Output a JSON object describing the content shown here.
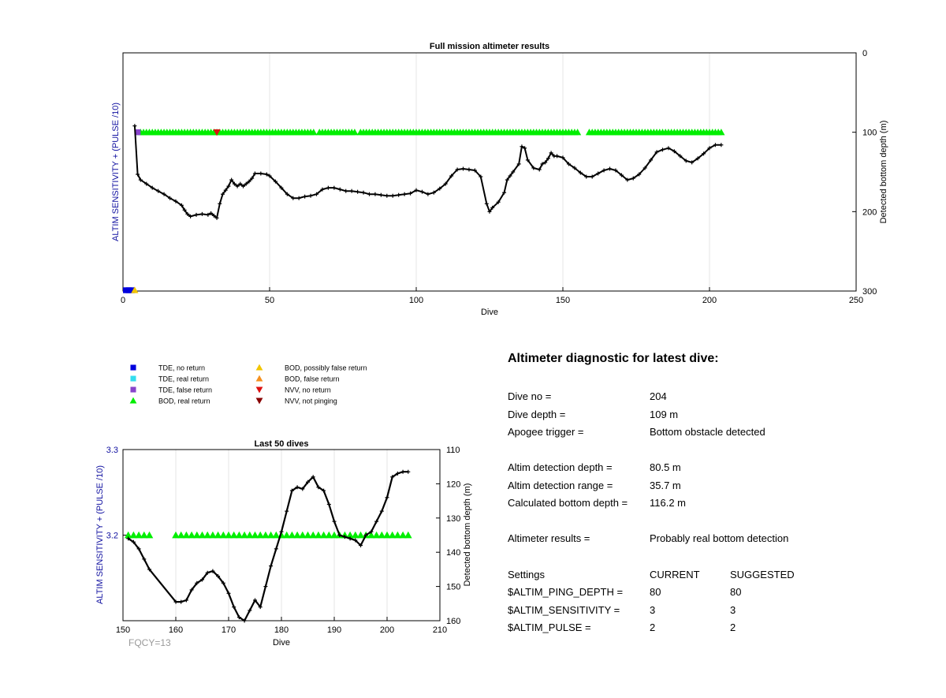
{
  "colors": {
    "grid": "#e6e6e6",
    "axis_label_left": "#1010a0",
    "green": "#00ee00",
    "line": "#000000"
  },
  "legend": [
    {
      "label": "TDE, no return",
      "marker": "square",
      "color": "#0000dd"
    },
    {
      "label": "TDE, real return",
      "marker": "square",
      "color": "#33ddee"
    },
    {
      "label": "TDE, false return",
      "marker": "square",
      "color": "#8844cc"
    },
    {
      "label": "BOD, real return",
      "marker": "triangle-up",
      "color": "#00ee00"
    },
    {
      "label": "BOD, possibly false return",
      "marker": "triangle-up",
      "color": "#f2c500"
    },
    {
      "label": "BOD, false return",
      "marker": "triangle-up",
      "color": "#f5901e"
    },
    {
      "label": "NVV, no return",
      "marker": "triangle-down",
      "color": "#dd1111"
    },
    {
      "label": "NVV, not pinging",
      "marker": "triangle-down",
      "color": "#880000"
    }
  ],
  "chart_data": [
    {
      "type": "line",
      "title": "Full mission altimeter results",
      "xlabel": "Dive",
      "ylabel_left": "ALTIM SENSITIVITY + (PULSE /10)",
      "ylabel_right": "Detected bottom depth (m)",
      "xlim": [
        0,
        250
      ],
      "ylim_right": [
        0,
        300
      ],
      "y_reversed": true,
      "xticks": [
        0,
        50,
        100,
        150,
        200,
        250
      ],
      "yticks_right": [
        0,
        100,
        200,
        300
      ],
      "grid": "x-only",
      "series": [
        {
          "kind": "line",
          "points": [
            [
              4,
              92
            ],
            [
              5,
              153
            ],
            [
              6,
              160
            ],
            [
              8,
              165
            ],
            [
              10,
              170
            ],
            [
              12,
              174
            ],
            [
              14,
              178
            ],
            [
              16,
              183
            ],
            [
              18,
              187
            ],
            [
              20,
              192
            ],
            [
              21,
              198
            ],
            [
              22,
              203
            ],
            [
              23,
              206
            ],
            [
              25,
              204
            ],
            [
              27,
              203
            ],
            [
              29,
              204
            ],
            [
              30,
              202
            ],
            [
              31,
              205
            ],
            [
              32,
              208
            ],
            [
              33,
              190
            ],
            [
              34,
              178
            ],
            [
              35,
              173
            ],
            [
              36,
              168
            ],
            [
              37,
              160
            ],
            [
              38,
              165
            ],
            [
              39,
              168
            ],
            [
              40,
              165
            ],
            [
              41,
              168
            ],
            [
              42,
              165
            ],
            [
              43,
              162
            ],
            [
              44,
              158
            ],
            [
              45,
              152
            ],
            [
              47,
              152
            ],
            [
              49,
              153
            ],
            [
              50,
              155
            ],
            [
              52,
              162
            ],
            [
              54,
              170
            ],
            [
              56,
              178
            ],
            [
              58,
              183
            ],
            [
              60,
              183
            ],
            [
              62,
              181
            ],
            [
              64,
              180
            ],
            [
              66,
              178
            ],
            [
              68,
              172
            ],
            [
              70,
              170
            ],
            [
              72,
              170
            ],
            [
              74,
              172
            ],
            [
              76,
              174
            ],
            [
              78,
              174
            ],
            [
              80,
              175
            ],
            [
              82,
              176
            ],
            [
              84,
              178
            ],
            [
              86,
              178
            ],
            [
              88,
              179
            ],
            [
              90,
              180
            ],
            [
              92,
              180
            ],
            [
              94,
              179
            ],
            [
              96,
              178
            ],
            [
              98,
              177
            ],
            [
              100,
              173
            ],
            [
              102,
              175
            ],
            [
              104,
              178
            ],
            [
              106,
              176
            ],
            [
              108,
              171
            ],
            [
              110,
              165
            ],
            [
              112,
              155
            ],
            [
              114,
              147
            ],
            [
              116,
              146
            ],
            [
              118,
              147
            ],
            [
              120,
              148
            ],
            [
              122,
              156
            ],
            [
              124,
              190
            ],
            [
              125,
              200
            ],
            [
              126,
              195
            ],
            [
              128,
              188
            ],
            [
              130,
              176
            ],
            [
              131,
              160
            ],
            [
              132,
              155
            ],
            [
              133,
              150
            ],
            [
              135,
              140
            ],
            [
              136,
              118
            ],
            [
              137,
              120
            ],
            [
              138,
              135
            ],
            [
              140,
              145
            ],
            [
              142,
              147
            ],
            [
              143,
              140
            ],
            [
              144,
              138
            ],
            [
              145,
              133
            ],
            [
              146,
              126
            ],
            [
              147,
              130
            ],
            [
              148,
              130
            ],
            [
              150,
              132
            ],
            [
              152,
              140
            ],
            [
              154,
              145
            ],
            [
              156,
              151
            ],
            [
              158,
              156
            ],
            [
              160,
              156
            ],
            [
              162,
              152
            ],
            [
              164,
              148
            ],
            [
              166,
              146
            ],
            [
              168,
              148
            ],
            [
              170,
              154
            ],
            [
              172,
              160
            ],
            [
              174,
              158
            ],
            [
              176,
              153
            ],
            [
              178,
              145
            ],
            [
              180,
              135
            ],
            [
              182,
              125
            ],
            [
              184,
              122
            ],
            [
              186,
              120
            ],
            [
              188,
              124
            ],
            [
              190,
              130
            ],
            [
              192,
              136
            ],
            [
              194,
              138
            ],
            [
              196,
              133
            ],
            [
              198,
              127
            ],
            [
              200,
              120
            ],
            [
              202,
              116
            ],
            [
              204,
              116
            ]
          ]
        },
        {
          "kind": "markers",
          "name": "BOD, real return",
          "marker": "triangle-up",
          "color": "#00ee00",
          "y": 100,
          "ranges": [
            [
              6,
              65
            ],
            [
              67,
              79
            ],
            [
              81,
              155
            ],
            [
              159,
              204
            ]
          ]
        },
        {
          "kind": "markers",
          "name": "NVV, no return",
          "marker": "triangle-down",
          "color": "#dd1111",
          "points": [
            [
              32,
              100
            ]
          ]
        },
        {
          "kind": "markers",
          "name": "TDE, false return",
          "marker": "square",
          "color": "#8844cc",
          "points": [
            [
              5,
              100
            ]
          ]
        },
        {
          "kind": "markers",
          "name": "TDE, no return",
          "marker": "square",
          "color": "#0000dd",
          "points": [
            [
              1,
              300
            ],
            [
              2,
              300
            ],
            [
              3,
              300
            ]
          ]
        },
        {
          "kind": "markers",
          "name": "BOD, possibly false return",
          "marker": "triangle-up",
          "color": "#f2c500",
          "points": [
            [
              4,
              300
            ]
          ]
        }
      ]
    },
    {
      "type": "line",
      "title": "Last 50 dives",
      "xlabel": "Dive",
      "ylabel_left": "ALTIM SENSITIVITY + (PULSE /10)",
      "ylabel_right": "Detected bottom depth (m)",
      "xlim": [
        150,
        210
      ],
      "ylim_left": [
        3.1,
        3.3
      ],
      "ylim_right": [
        110,
        160
      ],
      "y_reversed": true,
      "xticks": [
        150,
        160,
        170,
        180,
        190,
        200,
        210
      ],
      "yticks_left": [
        3.2,
        3.3
      ],
      "yticks_right": [
        110,
        120,
        130,
        140,
        150,
        160
      ],
      "grid": "x-only",
      "series": [
        {
          "kind": "line",
          "points": [
            [
              151,
              136
            ],
            [
              152,
              137
            ],
            [
              153,
              139
            ],
            [
              154,
              142
            ],
            [
              155,
              145
            ],
            [
              160,
              154.5
            ],
            [
              161,
              154.5
            ],
            [
              162,
              154
            ],
            [
              163,
              151
            ],
            [
              164,
              149
            ],
            [
              165,
              148
            ],
            [
              166,
              146
            ],
            [
              167,
              145.5
            ],
            [
              168,
              147
            ],
            [
              169,
              149
            ],
            [
              170,
              152
            ],
            [
              171,
              156
            ],
            [
              172,
              159
            ],
            [
              173,
              160
            ],
            [
              174,
              157
            ],
            [
              175,
              154
            ],
            [
              176,
              156
            ],
            [
              177,
              150
            ],
            [
              178,
              144
            ],
            [
              179,
              139
            ],
            [
              180,
              134
            ],
            [
              181,
              128
            ],
            [
              182,
              122
            ],
            [
              183,
              121
            ],
            [
              184,
              121.5
            ],
            [
              185,
              119.5
            ],
            [
              186,
              118
            ],
            [
              187,
              121
            ],
            [
              188,
              122
            ],
            [
              189,
              126
            ],
            [
              190,
              131
            ],
            [
              191,
              135
            ],
            [
              192,
              135.5
            ],
            [
              193,
              136
            ],
            [
              194,
              136.5
            ],
            [
              195,
              138
            ],
            [
              196,
              135
            ],
            [
              197,
              134
            ],
            [
              198,
              131
            ],
            [
              199,
              128
            ],
            [
              200,
              124
            ],
            [
              201,
              118
            ],
            [
              202,
              117
            ],
            [
              203,
              116.5
            ],
            [
              204,
              116.5
            ]
          ]
        },
        {
          "kind": "markers",
          "name": "BOD, real return",
          "marker": "triangle-up",
          "color": "#00ee00",
          "y": 135,
          "ranges": [
            [
              151,
              155
            ],
            [
              160,
              204
            ]
          ]
        }
      ]
    }
  ],
  "diagnostic": {
    "title": "Altimeter diagnostic for latest dive:",
    "rows": [
      {
        "label": "Dive no =",
        "current": "204",
        "suggested": ""
      },
      {
        "label": "Dive depth =",
        "current": "109 m",
        "suggested": ""
      },
      {
        "label": "Apogee trigger =",
        "current": "Bottom obstacle detected",
        "suggested": ""
      },
      {
        "label": "Altim detection depth =",
        "current": "80.5 m",
        "suggested": ""
      },
      {
        "label": "Altim detection range =",
        "current": "35.7 m",
        "suggested": ""
      },
      {
        "label": "Calculated bottom depth =",
        "current": "116.2 m",
        "suggested": ""
      },
      {
        "label": "Altimeter results =",
        "current": "Probably real bottom detection",
        "suggested": ""
      },
      {
        "label": "Settings",
        "current": "CURRENT",
        "suggested": "SUGGESTED"
      },
      {
        "label": "$ALTIM_PING_DEPTH =",
        "current": "80",
        "suggested": "80"
      },
      {
        "label": "$ALTIM_SENSITIVITY =",
        "current": "3",
        "suggested": "3"
      },
      {
        "label": "$ALTIM_PULSE =",
        "current": "2",
        "suggested": "2"
      }
    ]
  },
  "footer": {
    "fqcy": "FQCY=13"
  }
}
